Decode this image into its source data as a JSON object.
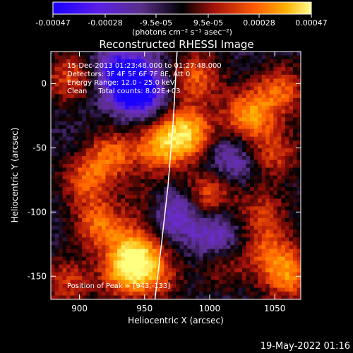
{
  "colorbar": {
    "tick_labels": [
      "-0.00047",
      "-0.00028",
      "-9.5e-05",
      "9.5e-05",
      "0.00028",
      "0.00047"
    ],
    "units_label": "(photons cm⁻² s⁻¹ asec⁻²)",
    "range": [
      -0.00047,
      0.00047
    ]
  },
  "chart_data": {
    "type": "heatmap",
    "title": "Reconstructed RHESSI Image",
    "xlabel": "Heliocentric X (arcsec)",
    "ylabel": "Heliocentric Y (arcsec)",
    "xlim": [
      878,
      1070
    ],
    "ylim": [
      -168,
      25
    ],
    "xticks": [
      900,
      950,
      1000,
      1050
    ],
    "yticks": [
      0,
      -50,
      -100,
      -150
    ],
    "info_lines": [
      "15-Dec-2013 01:23:48.000 to 01:27:48.000",
      "Detectors: 3F 4F 5F 6F 7F 8F, Att 0",
      "Energy Range: 12.0 - 25.0 keV",
      "Clean     Total counts: 8.02E+03"
    ],
    "peak_label": "Position of Peak = [943,-133]",
    "peak": [
      943,
      -133
    ],
    "colormap": [
      "#1a00ff",
      "#6a2bcf",
      "#5a2f8a",
      "#000000",
      "#a0100b",
      "#ff5a00",
      "#ffb000",
      "#ffff80"
    ],
    "limb_curve_x": [
      975,
      972,
      968,
      963,
      958
    ],
    "limb_curve_y": [
      25,
      -30,
      -80,
      -125,
      -168
    ],
    "bright_sources": [
      {
        "x": 983,
        "y": -38,
        "value": 0.00047
      },
      {
        "x": 962,
        "y": -50,
        "value": 0.00036
      },
      {
        "x": 990,
        "y": 5,
        "value": 0.0003
      },
      {
        "x": 1030,
        "y": -25,
        "value": 0.0004
      },
      {
        "x": 1055,
        "y": -5,
        "value": 0.0003
      },
      {
        "x": 1050,
        "y": -55,
        "value": 0.00025
      },
      {
        "x": 1040,
        "y": -100,
        "value": 0.00022
      },
      {
        "x": 1000,
        "y": -85,
        "value": 0.0003
      },
      {
        "x": 925,
        "y": -55,
        "value": 0.0003
      },
      {
        "x": 905,
        "y": -75,
        "value": 0.00028
      },
      {
        "x": 915,
        "y": -110,
        "value": 0.00032
      },
      {
        "x": 943,
        "y": -133,
        "value": 0.00047
      },
      {
        "x": 935,
        "y": -150,
        "value": 0.0003
      },
      {
        "x": 960,
        "y": -150,
        "value": 0.00022
      },
      {
        "x": 1060,
        "y": -150,
        "value": 0.00035
      },
      {
        "x": 1010,
        "y": -140,
        "value": 0.0002
      },
      {
        "x": 890,
        "y": -155,
        "value": 0.00025
      },
      {
        "x": 893,
        "y": 5,
        "value": 0.00028
      },
      {
        "x": 955,
        "y": -95,
        "value": 0.0002
      },
      {
        "x": 1045,
        "y": -130,
        "value": 0.00024
      }
    ],
    "dark_regions": [
      {
        "x": 945,
        "y": -5,
        "value": -0.00047
      },
      {
        "x": 930,
        "y": 10,
        "value": -0.0003
      },
      {
        "x": 970,
        "y": -100,
        "value": -0.0003
      },
      {
        "x": 1005,
        "y": -120,
        "value": -0.00025
      },
      {
        "x": 1015,
        "y": -60,
        "value": -0.0002
      }
    ]
  },
  "footer": {
    "timestamp": "19-May-2022 01:16"
  }
}
